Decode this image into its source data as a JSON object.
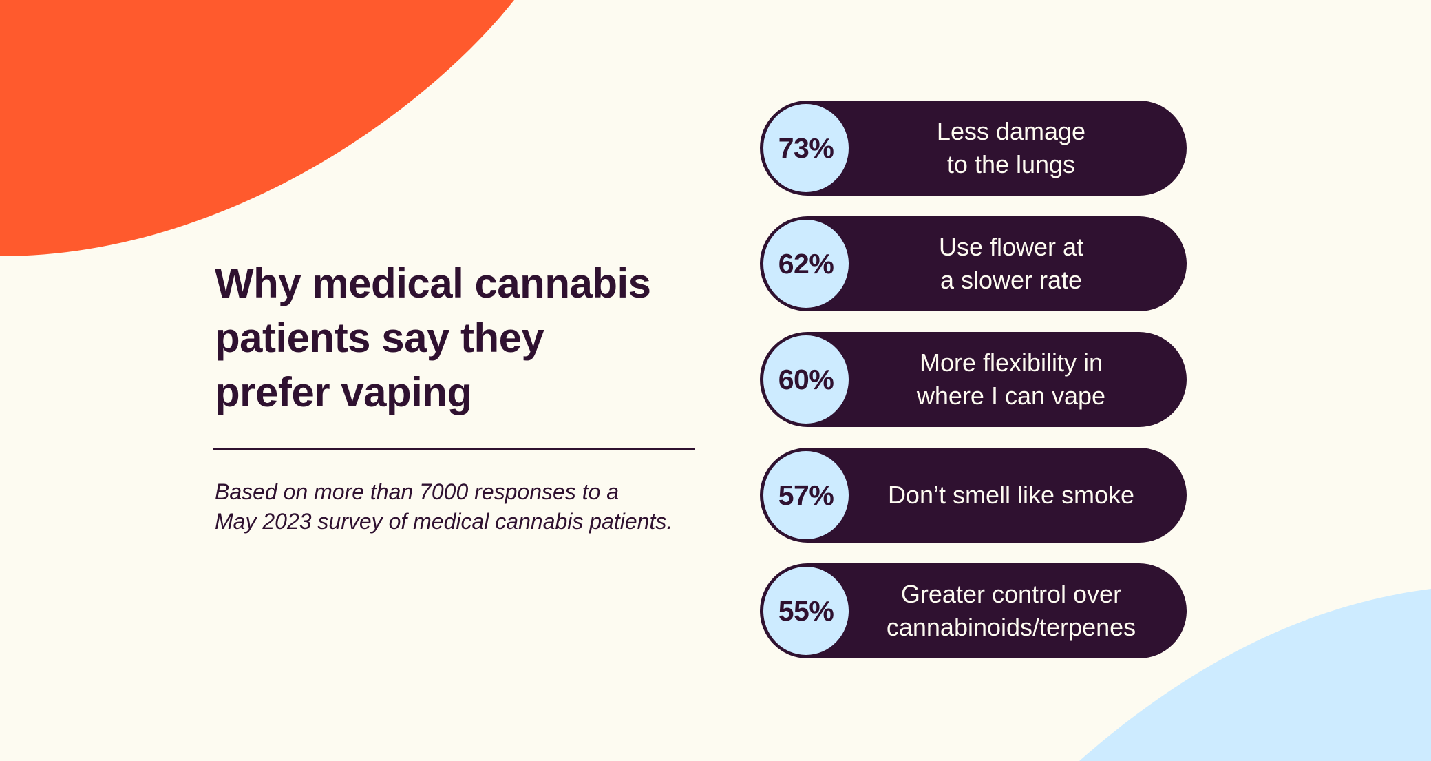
{
  "colors": {
    "background": "#FDFBF1",
    "accent_orange": "#FF5A2D",
    "accent_blue": "#CDEBFF",
    "dark": "#2F1130",
    "light_text": "#FDFBF1"
  },
  "heading": {
    "lines": [
      "Why medical cannabis",
      "patients say they",
      "prefer vaping"
    ]
  },
  "note": {
    "lines": [
      "Based on more than 7000 responses to a",
      "May 2023 survey of medical cannabis patients."
    ]
  },
  "reasons": [
    {
      "percent": "73%",
      "lines": [
        "Less damage",
        "to the lungs"
      ]
    },
    {
      "percent": "62%",
      "lines": [
        "Use flower at",
        "a slower rate"
      ]
    },
    {
      "percent": "60%",
      "lines": [
        "More flexibility in",
        "where I can vape"
      ]
    },
    {
      "percent": "57%",
      "lines": [
        "Don’t smell like smoke"
      ]
    },
    {
      "percent": "55%",
      "lines": [
        "Greater control over",
        "cannabinoids/terpenes"
      ]
    }
  ]
}
